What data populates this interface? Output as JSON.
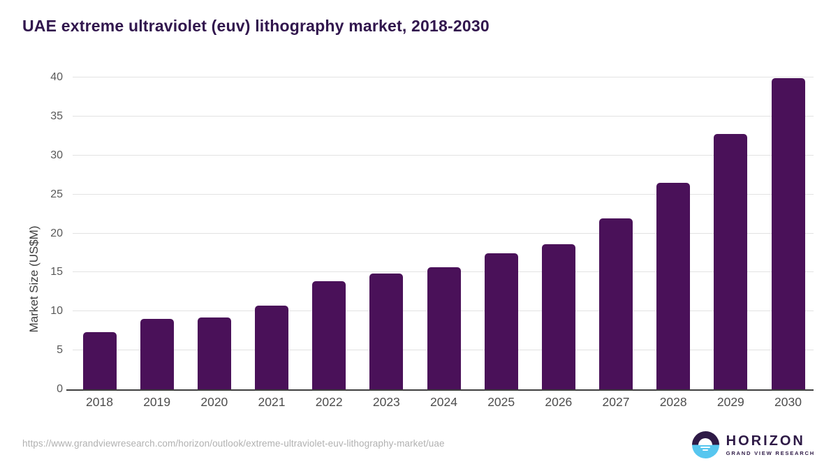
{
  "title": "UAE extreme ultraviolet (euv) lithography market, 2018-2030",
  "chart_data": {
    "type": "bar",
    "categories": [
      "2018",
      "2019",
      "2020",
      "2021",
      "2022",
      "2023",
      "2024",
      "2025",
      "2026",
      "2027",
      "2028",
      "2029",
      "2030"
    ],
    "values": [
      7.3,
      9.0,
      9.2,
      10.7,
      13.9,
      14.9,
      15.7,
      17.5,
      18.6,
      21.9,
      26.5,
      32.8,
      39.9
    ],
    "title": "UAE extreme ultraviolet (euv) lithography market, 2018-2030",
    "xlabel": "",
    "ylabel": "Market Size (US$M)",
    "ylim": [
      0,
      40
    ],
    "ytick_step": 5,
    "yticks": [
      0,
      5,
      10,
      15,
      20,
      25,
      30,
      35,
      40
    ],
    "grid": "horizontal-only",
    "legend": "none",
    "bar_color": "#4a1159"
  },
  "colors": {
    "title": "#31164d",
    "bar": "#4a1159",
    "gridline": "#e2e2e2",
    "axis_line": "#3f3f3f",
    "tick_label": "#595959",
    "url_text": "#b1b1b1",
    "logo_purple": "#2e1a46",
    "logo_blue": "#57c6ef"
  },
  "footer": {
    "source_url": "https://www.grandviewresearch.com/horizon/outlook/extreme-ultraviolet-euv-lithography-market/uae",
    "logo": {
      "name": "HORIZON",
      "subtitle": "GRAND VIEW RESEARCH"
    }
  }
}
